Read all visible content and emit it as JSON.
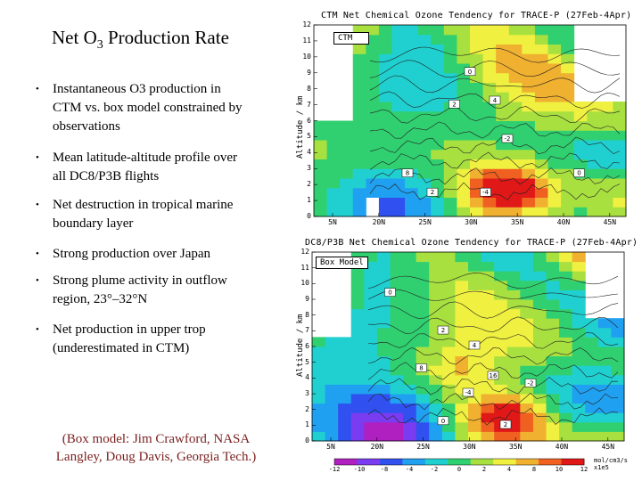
{
  "slide": {
    "title_prefix": "Net O",
    "title_sub": "3",
    "title_suffix": " Production Rate",
    "bullets": [
      {
        "lines": [
          "Instantaneous O3 production in",
          "CTM vs. box model constrained by",
          "observations"
        ]
      },
      {
        "lines": [
          "Mean latitude-altitude profile over",
          "all DC8/P3B flights"
        ]
      },
      {
        "lines": [
          "Net destruction in tropical marine",
          "boundary layer"
        ]
      },
      {
        "lines": [
          "Strong production over Japan"
        ]
      },
      {
        "lines": [
          "Strong plume activity in outflow",
          "region, 23°–32°N"
        ]
      },
      {
        "lines": [
          "Net production in upper trop",
          "(underestimated in CTM)"
        ]
      }
    ],
    "credit_line1": "(Box model:  Jim Crawford, NASA",
    "credit_line2": "Langley, Doug Davis, Georgia Tech.)"
  },
  "chart_data": [
    {
      "type": "heatmap",
      "title": "CTM Net Chemical Ozone Tendency for TRACE-P (27Feb-4Apr)",
      "label": "CTM",
      "ylabel": "Altitude / km",
      "xlabel": "",
      "xticks": [
        "5N",
        "20N",
        "25N",
        "30N",
        "35N",
        "40N",
        "45N"
      ],
      "yticks": [
        "0",
        "1",
        "2",
        "3",
        "4",
        "5",
        "6",
        "7",
        "8",
        "9",
        "10",
        "11",
        "12"
      ],
      "ylim": [
        0,
        12
      ],
      "contour_labels": [
        "0",
        "2",
        "4",
        "8",
        "-2",
        "-4"
      ]
    },
    {
      "type": "heatmap",
      "title": "DC8/P3B Net Chemical Ozone Tendency for TRACE-P (27Feb-4Apr)",
      "label": "Box Model",
      "ylabel": "Altitude / km",
      "xlabel": "",
      "xticks": [
        "5N",
        "20N",
        "25N",
        "30N",
        "35N",
        "40N",
        "45N"
      ],
      "yticks": [
        "0",
        "1",
        "2",
        "3",
        "4",
        "5",
        "6",
        "7",
        "8",
        "9",
        "10",
        "11",
        "12"
      ],
      "ylim": [
        0,
        12
      ],
      "contour_labels": [
        "0",
        "2",
        "4",
        "8",
        "16",
        "-2",
        "-4"
      ],
      "colorbar": {
        "ticks": [
          "-12",
          "-10",
          "-8",
          "-4",
          "-2",
          "0",
          "2",
          "4",
          "8",
          "10",
          "12"
        ],
        "unit_line1": "mol/cm3/s",
        "unit_line2": "x1e5",
        "colors": [
          "#b020c0",
          "#7a3cf0",
          "#3050f0",
          "#20a0f0",
          "#20d0d0",
          "#30d070",
          "#a8e040",
          "#f0f040",
          "#f0b030",
          "#f06020",
          "#e01818"
        ]
      }
    }
  ]
}
